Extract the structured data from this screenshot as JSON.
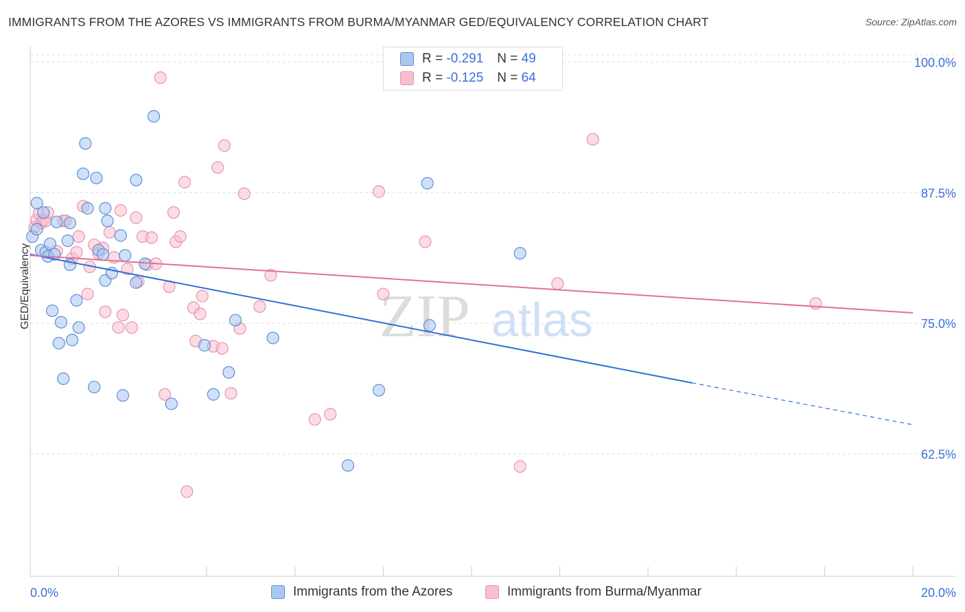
{
  "title": "IMMIGRANTS FROM THE AZORES VS IMMIGRANTS FROM BURMA/MYANMAR GED/EQUIVALENCY CORRELATION CHART",
  "source": "Source: ZipAtlas.com",
  "watermark": {
    "zip": "ZIP",
    "atlas": "atlas"
  },
  "legend": {
    "r_label": "R =",
    "n_label": "N =",
    "series1": {
      "r": "-0.291",
      "n": "49"
    },
    "series2": {
      "r": "-0.125",
      "n": "64"
    }
  },
  "colors": {
    "blue_fill": "#aac7f0",
    "blue_stroke": "#5b8fd9",
    "blue_line": "#2d6fd4",
    "pink_fill": "#f7bfd0",
    "pink_stroke": "#e892ad",
    "pink_line": "#e0709a",
    "tick_text": "#3a6fd8"
  },
  "chart_data": {
    "type": "scatter",
    "title": "IMMIGRANTS FROM THE AZORES VS IMMIGRANTS FROM BURMA/MYANMAR GED/EQUIVALENCY CORRELATION CHART",
    "xlabel": "",
    "ylabel": "GED/Equivalency",
    "xlim": [
      0,
      20
    ],
    "ylim": [
      50.8,
      101.2
    ],
    "x_tick_labels": [
      "0.0%",
      "20.0%"
    ],
    "y_ticks": [
      62.5,
      75.0,
      87.5,
      100.0
    ],
    "y_tick_labels": [
      "62.5%",
      "75.0%",
      "87.5%",
      "100.0%"
    ],
    "grid": "horizontal dashed",
    "legend_position": "top-center",
    "series": [
      {
        "name": "Immigrants from the Azores",
        "color": "blue",
        "r": -0.291,
        "n": 49,
        "trend": {
          "x0": 0.0,
          "y0": 81.6,
          "x1": 15.0,
          "y1": 69.3,
          "dashed_to_x": 20.0,
          "dashed_to_y": 65.3
        },
        "points": [
          [
            0.05,
            83.3
          ],
          [
            0.15,
            84.0
          ],
          [
            0.15,
            86.5
          ],
          [
            0.3,
            85.6
          ],
          [
            0.25,
            82.0
          ],
          [
            0.35,
            81.8
          ],
          [
            0.4,
            81.4
          ],
          [
            0.45,
            82.6
          ],
          [
            0.5,
            76.2
          ],
          [
            0.55,
            81.6
          ],
          [
            0.6,
            84.7
          ],
          [
            0.65,
            73.1
          ],
          [
            0.7,
            75.1
          ],
          [
            0.75,
            69.7
          ],
          [
            0.85,
            82.9
          ],
          [
            0.9,
            80.6
          ],
          [
            0.9,
            84.6
          ],
          [
            0.95,
            73.4
          ],
          [
            1.05,
            77.2
          ],
          [
            1.1,
            74.6
          ],
          [
            1.2,
            89.3
          ],
          [
            1.25,
            92.2
          ],
          [
            1.3,
            86.0
          ],
          [
            1.45,
            68.9
          ],
          [
            1.5,
            88.9
          ],
          [
            1.55,
            82.0
          ],
          [
            1.65,
            81.6
          ],
          [
            1.7,
            79.1
          ],
          [
            1.75,
            84.8
          ],
          [
            1.7,
            86.0
          ],
          [
            1.85,
            79.8
          ],
          [
            2.05,
            83.4
          ],
          [
            2.1,
            68.1
          ],
          [
            2.15,
            81.5
          ],
          [
            2.4,
            78.9
          ],
          [
            2.4,
            88.7
          ],
          [
            2.6,
            80.7
          ],
          [
            2.8,
            94.8
          ],
          [
            3.2,
            67.3
          ],
          [
            3.95,
            72.9
          ],
          [
            4.15,
            68.2
          ],
          [
            4.5,
            70.3
          ],
          [
            4.65,
            75.3
          ],
          [
            5.5,
            73.6
          ],
          [
            7.2,
            61.4
          ],
          [
            7.9,
            68.6
          ],
          [
            9.0,
            88.4
          ],
          [
            9.05,
            74.8
          ],
          [
            11.1,
            81.7
          ]
        ]
      },
      {
        "name": "Immigrants from Burma/Myanmar",
        "color": "pink",
        "r": -0.125,
        "n": 64,
        "trend": {
          "x0": 0.0,
          "y0": 81.5,
          "x1": 20.0,
          "y1": 76.0
        },
        "points": [
          [
            0.1,
            84.2
          ],
          [
            0.15,
            84.9
          ],
          [
            0.2,
            85.5
          ],
          [
            0.25,
            84.6
          ],
          [
            0.3,
            84.9
          ],
          [
            0.35,
            84.8
          ],
          [
            0.4,
            85.6
          ],
          [
            0.6,
            81.9
          ],
          [
            0.75,
            84.8
          ],
          [
            0.8,
            84.8
          ],
          [
            0.95,
            81.2
          ],
          [
            1.05,
            81.8
          ],
          [
            1.1,
            83.3
          ],
          [
            1.2,
            86.2
          ],
          [
            1.3,
            77.8
          ],
          [
            1.35,
            80.4
          ],
          [
            1.45,
            82.5
          ],
          [
            1.55,
            81.7
          ],
          [
            1.65,
            82.2
          ],
          [
            1.7,
            76.1
          ],
          [
            1.8,
            83.7
          ],
          [
            1.9,
            81.3
          ],
          [
            2.0,
            74.6
          ],
          [
            2.05,
            85.8
          ],
          [
            2.1,
            75.8
          ],
          [
            2.2,
            80.2
          ],
          [
            2.3,
            74.6
          ],
          [
            2.4,
            85.1
          ],
          [
            2.45,
            79.0
          ],
          [
            2.55,
            83.3
          ],
          [
            2.65,
            80.6
          ],
          [
            2.75,
            83.2
          ],
          [
            2.85,
            80.7
          ],
          [
            2.95,
            98.5
          ],
          [
            3.05,
            68.2
          ],
          [
            3.15,
            78.5
          ],
          [
            3.25,
            85.6
          ],
          [
            3.3,
            82.8
          ],
          [
            3.4,
            83.3
          ],
          [
            3.5,
            88.5
          ],
          [
            3.55,
            58.9
          ],
          [
            3.7,
            76.5
          ],
          [
            3.75,
            73.3
          ],
          [
            3.85,
            75.9
          ],
          [
            3.9,
            77.6
          ],
          [
            4.15,
            72.8
          ],
          [
            4.25,
            89.9
          ],
          [
            4.35,
            72.6
          ],
          [
            4.4,
            92.0
          ],
          [
            4.55,
            68.3
          ],
          [
            4.75,
            74.5
          ],
          [
            4.85,
            87.4
          ],
          [
            5.2,
            76.6
          ],
          [
            5.45,
            79.6
          ],
          [
            6.45,
            65.8
          ],
          [
            6.8,
            66.3
          ],
          [
            7.9,
            87.6
          ],
          [
            8.0,
            77.8
          ],
          [
            8.95,
            82.8
          ],
          [
            11.1,
            61.3
          ],
          [
            11.95,
            78.8
          ],
          [
            12.75,
            92.6
          ],
          [
            17.8,
            76.9
          ],
          [
            10.0,
            100.3
          ]
        ]
      }
    ]
  }
}
